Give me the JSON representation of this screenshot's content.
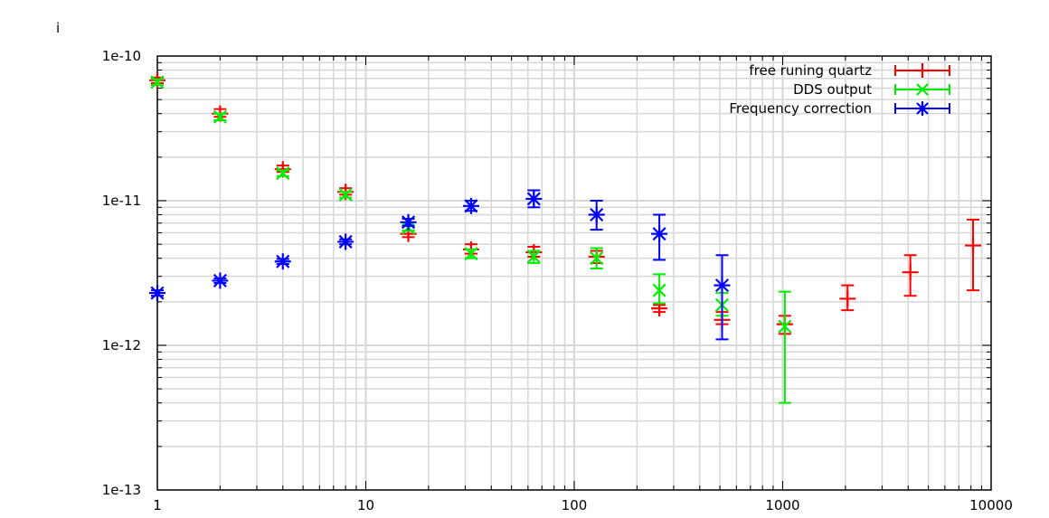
{
  "corner_mark": "i",
  "chart_data": {
    "type": "scatter",
    "title": "",
    "xlabel": "",
    "ylabel": "",
    "x_scale": "log",
    "y_scale": "log",
    "xlim": [
      1,
      10000
    ],
    "ylim": [
      1e-13,
      1e-10
    ],
    "grid": true,
    "legend_position": "top-right",
    "x_ticks": [
      {
        "value": 1,
        "label": "1"
      },
      {
        "value": 10,
        "label": "10"
      },
      {
        "value": 100,
        "label": "100"
      },
      {
        "value": 1000,
        "label": "1000"
      },
      {
        "value": 10000,
        "label": "10000"
      }
    ],
    "y_ticks": [
      {
        "value": 1e-10,
        "label": "1e-10"
      },
      {
        "value": 1e-11,
        "label": "1e-11"
      },
      {
        "value": 1e-12,
        "label": "1e-12"
      },
      {
        "value": 1e-13,
        "label": "1e-13"
      }
    ],
    "series": [
      {
        "name": "free runing quartz",
        "color": "#ff0000",
        "marker": "plus",
        "points": [
          {
            "x": 1,
            "y": 6.8e-11,
            "lo": 6.5e-11,
            "hi": 7.1e-11
          },
          {
            "x": 2,
            "y": 4e-11,
            "lo": 3.8e-11,
            "hi": 4.3e-11
          },
          {
            "x": 4,
            "y": 1.65e-11,
            "lo": 1.58e-11,
            "hi": 1.75e-11
          },
          {
            "x": 8,
            "y": 1.15e-11,
            "lo": 1.1e-11,
            "hi": 1.22e-11
          },
          {
            "x": 16,
            "y": 5.9e-12,
            "lo": 5.6e-12,
            "hi": 6.2e-12
          },
          {
            "x": 32,
            "y": 4.6e-12,
            "lo": 4.3e-12,
            "hi": 5e-12
          },
          {
            "x": 64,
            "y": 4.4e-12,
            "lo": 4.1e-12,
            "hi": 4.8e-12
          },
          {
            "x": 128,
            "y": 4.1e-12,
            "lo": 3.7e-12,
            "hi": 4.5e-12
          },
          {
            "x": 256,
            "y": 1.8e-12,
            "lo": 1.7e-12,
            "hi": 1.9e-12
          },
          {
            "x": 512,
            "y": 1.5e-12,
            "lo": 1.4e-12,
            "hi": 1.7e-12
          },
          {
            "x": 1024,
            "y": 1.4e-12,
            "lo": 1.2e-12,
            "hi": 1.6e-12
          },
          {
            "x": 2048,
            "y": 2.1e-12,
            "lo": 1.75e-12,
            "hi": 2.6e-12
          },
          {
            "x": 4096,
            "y": 3.2e-12,
            "lo": 2.2e-12,
            "hi": 4.2e-12
          },
          {
            "x": 8192,
            "y": 4.9e-12,
            "lo": 2.4e-12,
            "hi": 7.4e-12
          }
        ]
      },
      {
        "name": "DDS output",
        "color": "#00ee00",
        "marker": "x",
        "points": [
          {
            "x": 1,
            "y": 6.6e-11,
            "lo": 6.3e-11,
            "hi": 6.9e-11
          },
          {
            "x": 2,
            "y": 3.8e-11,
            "lo": 3.6e-11,
            "hi": 4e-11
          },
          {
            "x": 4,
            "y": 1.55e-11,
            "lo": 1.48e-11,
            "hi": 1.62e-11
          },
          {
            "x": 8,
            "y": 1.1e-11,
            "lo": 1.05e-11,
            "hi": 1.15e-11
          },
          {
            "x": 16,
            "y": 6.5e-12,
            "lo": 6.2e-12,
            "hi": 6.8e-12
          },
          {
            "x": 32,
            "y": 4.3e-12,
            "lo": 4e-12,
            "hi": 4.6e-12
          },
          {
            "x": 64,
            "y": 4.1e-12,
            "lo": 3.7e-12,
            "hi": 4.5e-12
          },
          {
            "x": 128,
            "y": 4e-12,
            "lo": 3.4e-12,
            "hi": 4.7e-12
          },
          {
            "x": 256,
            "y": 2.4e-12,
            "lo": 1.95e-12,
            "hi": 3.1e-12
          },
          {
            "x": 512,
            "y": 1.9e-12,
            "lo": 1.6e-12,
            "hi": 2.3e-12
          },
          {
            "x": 1024,
            "y": 1.35e-12,
            "lo": 4e-13,
            "hi": 2.35e-12
          }
        ]
      },
      {
        "name": "Frequency correction",
        "color": "#0000ff",
        "marker": "star",
        "points": [
          {
            "x": 1,
            "y": 2.3e-12,
            "lo": 2.2e-12,
            "hi": 2.4e-12
          },
          {
            "x": 2,
            "y": 2.8e-12,
            "lo": 2.7e-12,
            "hi": 2.9e-12
          },
          {
            "x": 4,
            "y": 3.8e-12,
            "lo": 3.65e-12,
            "hi": 3.95e-12
          },
          {
            "x": 8,
            "y": 5.2e-12,
            "lo": 5e-12,
            "hi": 5.4e-12
          },
          {
            "x": 16,
            "y": 7.1e-12,
            "lo": 6.7e-12,
            "hi": 7.5e-12
          },
          {
            "x": 32,
            "y": 9.2e-12,
            "lo": 8.5e-12,
            "hi": 1e-11
          },
          {
            "x": 64,
            "y": 1.03e-11,
            "lo": 9e-12,
            "hi": 1.18e-11
          },
          {
            "x": 128,
            "y": 8e-12,
            "lo": 6.3e-12,
            "hi": 1e-11
          },
          {
            "x": 256,
            "y": 5.9e-12,
            "lo": 3.9e-12,
            "hi": 8e-12
          },
          {
            "x": 512,
            "y": 2.6e-12,
            "lo": 1.1e-12,
            "hi": 4.2e-12
          }
        ]
      }
    ]
  }
}
